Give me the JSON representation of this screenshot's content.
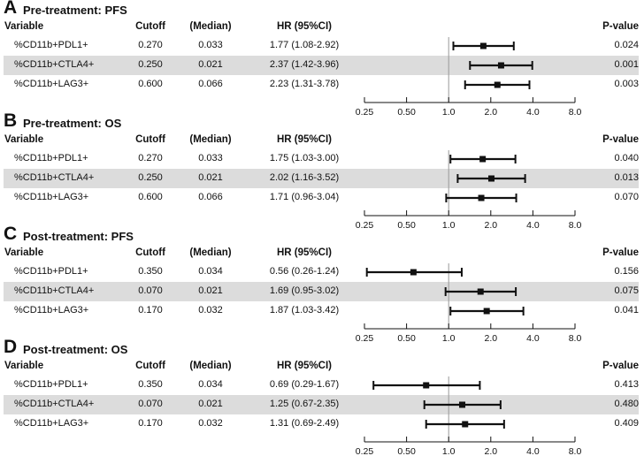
{
  "axis": {
    "scale": "log2",
    "xlim": [
      0.25,
      8.0
    ],
    "ticks": [
      0.25,
      0.5,
      1.0,
      2.0,
      4.0,
      8.0
    ],
    "tick_labels": [
      "0.25",
      "0.50",
      "1.0",
      "2.0",
      "4.0",
      "8.0"
    ],
    "reference_line": 1.0
  },
  "headers": {
    "variable": "Variable",
    "cutoff": "Cutoff",
    "median": "(Median)",
    "hr": "HR (95%CI)",
    "pvalue": "P-value"
  },
  "colors": {
    "shade": "#dcdcdc",
    "line": "#111111",
    "refline": "#999999"
  },
  "panels": [
    {
      "letter": "A",
      "title": "Pre-treatment: PFS",
      "rows": [
        {
          "variable": "%CD11b+PDL1+",
          "cutoff": "0.270",
          "median": "0.033",
          "hr_text": "1.77 (1.08-2.92)",
          "pvalue": "0.024",
          "hr": 1.77,
          "lo": 1.08,
          "hi": 2.92
        },
        {
          "variable": "%CD11b+CTLA4+",
          "cutoff": "0.250",
          "median": "0.021",
          "hr_text": "2.37 (1.42-3.96)",
          "pvalue": "0.001",
          "hr": 2.37,
          "lo": 1.42,
          "hi": 3.96
        },
        {
          "variable": "%CD11b+LAG3+",
          "cutoff": "0.600",
          "median": "0.066",
          "hr_text": "2.23 (1.31-3.78)",
          "pvalue": "0.003",
          "hr": 2.23,
          "lo": 1.31,
          "hi": 3.78
        }
      ]
    },
    {
      "letter": "B",
      "title": "Pre-treatment: OS",
      "rows": [
        {
          "variable": "%CD11b+PDL1+",
          "cutoff": "0.270",
          "median": "0.033",
          "hr_text": "1.75 (1.03-3.00)",
          "pvalue": "0.040",
          "hr": 1.75,
          "lo": 1.03,
          "hi": 3.0
        },
        {
          "variable": "%CD11b+CTLA4+",
          "cutoff": "0.250",
          "median": "0.021",
          "hr_text": "2.02 (1.16-3.52)",
          "pvalue": "0.013",
          "hr": 2.02,
          "lo": 1.16,
          "hi": 3.52
        },
        {
          "variable": "%CD11b+LAG3+",
          "cutoff": "0.600",
          "median": "0.066",
          "hr_text": "1.71 (0.96-3.04)",
          "pvalue": "0.070",
          "hr": 1.71,
          "lo": 0.96,
          "hi": 3.04
        }
      ]
    },
    {
      "letter": "C",
      "title": "Post-treatment: PFS",
      "rows": [
        {
          "variable": "%CD11b+PDL1+",
          "cutoff": "0.350",
          "median": "0.034",
          "hr_text": "0.56 (0.26-1.24)",
          "pvalue": "0.156",
          "hr": 0.56,
          "lo": 0.26,
          "hi": 1.24
        },
        {
          "variable": "%CD11b+CTLA4+",
          "cutoff": "0.070",
          "median": "0.021",
          "hr_text": "1.69 (0.95-3.02)",
          "pvalue": "0.075",
          "hr": 1.69,
          "lo": 0.95,
          "hi": 3.02
        },
        {
          "variable": "%CD11b+LAG3+",
          "cutoff": "0.170",
          "median": "0.032",
          "hr_text": "1.87 (1.03-3.42)",
          "pvalue": "0.041",
          "hr": 1.87,
          "lo": 1.03,
          "hi": 3.42
        }
      ]
    },
    {
      "letter": "D",
      "title": "Post-treatment: OS",
      "rows": [
        {
          "variable": "%CD11b+PDL1+",
          "cutoff": "0.350",
          "median": "0.034",
          "hr_text": "0.69 (0.29-1.67)",
          "pvalue": "0.413",
          "hr": 0.69,
          "lo": 0.29,
          "hi": 1.67
        },
        {
          "variable": "%CD11b+CTLA4+",
          "cutoff": "0.070",
          "median": "0.021",
          "hr_text": "1.25 (0.67-2.35)",
          "pvalue": "0.480",
          "hr": 1.25,
          "lo": 0.67,
          "hi": 2.35
        },
        {
          "variable": "%CD11b+LAG3+",
          "cutoff": "0.170",
          "median": "0.032",
          "hr_text": "1.31 (0.69-2.49)",
          "pvalue": "0.409",
          "hr": 1.31,
          "lo": 0.69,
          "hi": 2.49
        }
      ]
    }
  ],
  "chart_data": [
    {
      "type": "forest",
      "title": "Pre-treatment: PFS",
      "xlabel": "",
      "ylabel": "",
      "xlim": [
        0.25,
        8.0
      ],
      "categories": [
        "%CD11b+PDL1+",
        "%CD11b+CTLA4+",
        "%CD11b+LAG3+"
      ],
      "values": [
        1.77,
        2.37,
        2.23
      ],
      "ci_low": [
        1.08,
        1.42,
        1.31
      ],
      "ci_high": [
        2.92,
        3.96,
        3.78
      ]
    },
    {
      "type": "forest",
      "title": "Pre-treatment: OS",
      "xlabel": "",
      "ylabel": "",
      "xlim": [
        0.25,
        8.0
      ],
      "categories": [
        "%CD11b+PDL1+",
        "%CD11b+CTLA4+",
        "%CD11b+LAG3+"
      ],
      "values": [
        1.75,
        2.02,
        1.71
      ],
      "ci_low": [
        1.03,
        1.16,
        0.96
      ],
      "ci_high": [
        3.0,
        3.52,
        3.04
      ]
    },
    {
      "type": "forest",
      "title": "Post-treatment: PFS",
      "xlabel": "",
      "ylabel": "",
      "xlim": [
        0.25,
        8.0
      ],
      "categories": [
        "%CD11b+PDL1+",
        "%CD11b+CTLA4+",
        "%CD11b+LAG3+"
      ],
      "values": [
        0.56,
        1.69,
        1.87
      ],
      "ci_low": [
        0.26,
        0.95,
        1.03
      ],
      "ci_high": [
        1.24,
        3.02,
        3.42
      ]
    },
    {
      "type": "forest",
      "title": "Post-treatment: OS",
      "xlabel": "",
      "ylabel": "",
      "xlim": [
        0.25,
        8.0
      ],
      "categories": [
        "%CD11b+PDL1+",
        "%CD11b+CTLA4+",
        "%CD11b+LAG3+"
      ],
      "values": [
        0.69,
        1.25,
        1.31
      ],
      "ci_low": [
        0.29,
        0.67,
        0.69
      ],
      "ci_high": [
        1.67,
        2.35,
        2.49
      ]
    }
  ]
}
